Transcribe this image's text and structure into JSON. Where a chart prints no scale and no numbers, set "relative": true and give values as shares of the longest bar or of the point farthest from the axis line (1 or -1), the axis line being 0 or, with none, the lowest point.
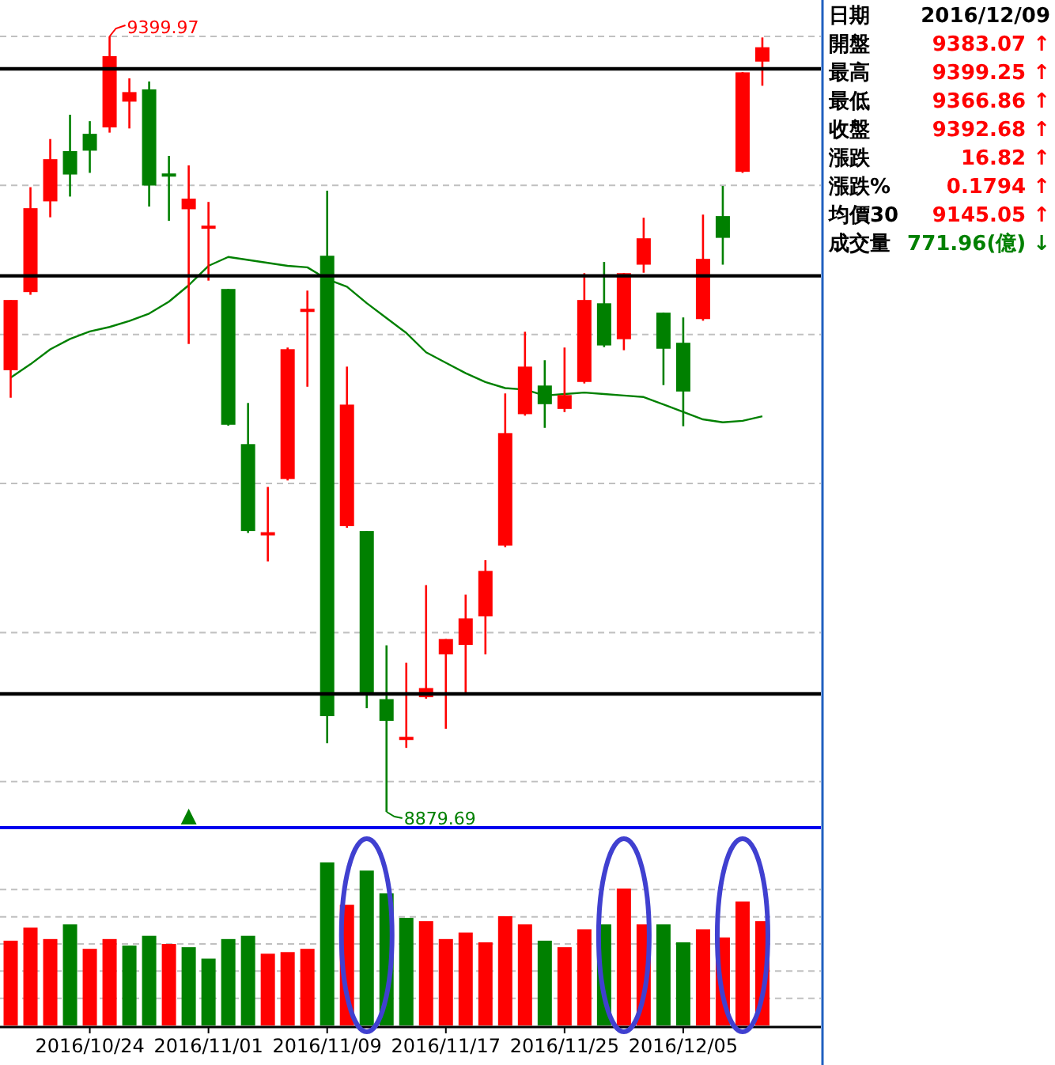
{
  "chart_data": [
    {
      "type": "candlestick",
      "categories": [
        null,
        null,
        null,
        null,
        null,
        null,
        null,
        null,
        null,
        null,
        null,
        null,
        null,
        null,
        null,
        null,
        null,
        null,
        null,
        null,
        null,
        null,
        null,
        null,
        null,
        null,
        null,
        null,
        null,
        null,
        null,
        null,
        null,
        null,
        null,
        null,
        null,
        null,
        null
      ],
      "ohlc": [
        [
          9176.0,
          9223.1,
          9157.5,
          9223.1
        ],
        [
          9228.4,
          9298.8,
          9226.6,
          9284.7
        ],
        [
          9289.3,
          9331.1,
          9278.6,
          9317.6
        ],
        [
          9323.0,
          9347.4,
          9292.5,
          9307.3
        ],
        [
          9334.6,
          9343.1,
          9308.4,
          9323.3
        ],
        [
          9338.9,
          9399.97,
          9335.4,
          9386.7
        ],
        [
          9356.2,
          9371.8,
          9338.2,
          9362.6
        ],
        [
          9364.4,
          9369.7,
          9285.8,
          9299.9
        ],
        [
          9308.0,
          9319.8,
          9276.2,
          9307.0
        ],
        [
          9284.0,
          9313.4,
          9193.6,
          9291.1
        ],
        [
          9272.3,
          9288.9,
          9236.1,
          9273.0
        ],
        [
          9230.5,
          9230.5,
          9138.8,
          9139.4
        ],
        [
          9126.4,
          9154.0,
          9066.8,
          9068.1
        ],
        [
          9066.3,
          9097.7,
          9047.7,
          9067.3
        ],
        [
          9103.0,
          9191.2,
          9102.0,
          9190.1
        ],
        [
          9216.2,
          9229.4,
          9164.9,
          9217.2
        ],
        [
          9252.8,
          9296.4,
          8925.8,
          8943.9
        ],
        [
          9071.4,
          9178.4,
          9070.3,
          9152.9
        ],
        [
          9068.1,
          9068.1,
          8949.2,
          8959.2
        ],
        [
          8955.3,
          8991.4,
          8879.69,
          8940.7
        ],
        [
          8929.0,
          8979.7,
          8922.6,
          8930.0
        ],
        [
          8956.6,
          9031.8,
          8955.6,
          8962.7
        ],
        [
          8985.3,
          8995.6,
          8935.4,
          8995.6
        ],
        [
          8991.7,
          9025.4,
          8959.2,
          9009.5
        ],
        [
          9010.8,
          9048.5,
          8985.3,
          9041.3
        ],
        [
          9058.3,
          9160.4,
          9057.3,
          9133.8
        ],
        [
          9146.5,
          9201.8,
          9145.5,
          9178.4
        ],
        [
          9165.7,
          9182.7,
          9137.3,
          9153.2
        ],
        [
          9150.0,
          9191.2,
          9147.9,
          9159.3
        ],
        [
          9168.1,
          9241.1,
          9167.1,
          9223.1
        ],
        [
          9220.9,
          9248.6,
          9191.5,
          9192.6
        ],
        [
          9196.8,
          9241.1,
          9189.4,
          9241.1
        ],
        [
          9246.8,
          9278.3,
          9241.4,
          9264.5
        ],
        [
          9214.6,
          9214.6,
          9166.0,
          9190.4
        ],
        [
          9194.4,
          9211.4,
          9138.4,
          9161.7
        ],
        [
          9210.3,
          9280.4,
          9209.2,
          9250.7
        ],
        [
          9279.4,
          9299.6,
          9246.8,
          9264.8
        ],
        [
          9309.1,
          9376.1,
          9308.4,
          9375.86
        ],
        [
          9383.07,
          9399.25,
          9366.86,
          9392.68
        ]
      ],
      "colors": [
        "#ff0000",
        "#ff0000",
        "#ff0000",
        "#008000",
        "#008000",
        "#ff0000",
        "#ff0000",
        "#008000",
        "#008000",
        "#ff0000",
        "#ff0000",
        "#008000",
        "#008000",
        "#ff0000",
        "#ff0000",
        "#ff0000",
        "#008000",
        "#ff0000",
        "#008000",
        "#008000",
        "#ff0000",
        "#ff0000",
        "#ff0000",
        "#ff0000",
        "#ff0000",
        "#ff0000",
        "#ff0000",
        "#008000",
        "#ff0000",
        "#ff0000",
        "#008000",
        "#ff0000",
        "#ff0000",
        "#008000",
        "#008000",
        "#ff0000",
        "#008000",
        "#ff0000",
        "#ff0000"
      ],
      "series": [
        {
          "type": "line",
          "color": "#008000",
          "values": [
            9171,
            9180,
            9190,
            9197,
            9202,
            9205,
            9209,
            9214,
            9222,
            9233,
            9246,
            9252,
            9250,
            9248,
            9246,
            9245,
            9237,
            9232,
            9221,
            9211,
            9201,
            9188,
            9181,
            9174,
            9168,
            9164,
            9163,
            9159,
            9160,
            9161,
            9160,
            9159,
            9158,
            9153,
            9148,
            9143,
            9141,
            9142,
            9145.05
          ]
        }
      ],
      "yticks": [
        {
          "value": 8900,
          "label": null
        },
        {
          "value": 9000,
          "label": null
        },
        {
          "value": 9100,
          "label": null
        },
        {
          "value": 9200,
          "label": null
        },
        {
          "value": 9300,
          "label": null
        },
        {
          "value": 9400,
          "label": null
        }
      ],
      "grid": true,
      "ref_lines": [
        {
          "axis": "y",
          "value": 9378.2,
          "color": "#000000"
        },
        {
          "axis": "y",
          "value": 9239.3,
          "color": "#000000"
        },
        {
          "axis": "y",
          "value": 8958.8,
          "color": "#000000"
        }
      ],
      "annotations": [
        "9399.97",
        "8879.69"
      ]
    },
    {
      "type": "bar",
      "relative": true,
      "grid": true,
      "categories": [
        null,
        null,
        null,
        null,
        "2016/10/24",
        null,
        null,
        null,
        null,
        null,
        "2016/11/01",
        null,
        null,
        null,
        null,
        null,
        "2016/11/09",
        null,
        null,
        null,
        null,
        null,
        "2016/11/17",
        null,
        null,
        null,
        null,
        null,
        "2016/11/25",
        null,
        null,
        null,
        null,
        null,
        "2016/12/05",
        null,
        null,
        null,
        null
      ],
      "values": [
        0.52,
        0.6,
        0.53,
        0.62,
        0.47,
        0.53,
        0.49,
        0.55,
        0.5,
        0.48,
        0.41,
        0.53,
        0.55,
        0.44,
        0.45,
        0.47,
        1,
        0.74,
        0.95,
        0.81,
        0.66,
        0.64,
        0.53,
        0.57,
        0.51,
        0.67,
        0.62,
        0.52,
        0.48,
        0.59,
        0.62,
        0.84,
        0.62,
        0.62,
        0.51,
        0.59,
        0.54,
        0.76,
        0.64
      ],
      "colors": [
        "#ff0000",
        "#ff0000",
        "#ff0000",
        "#008000",
        "#ff0000",
        "#ff0000",
        "#008000",
        "#008000",
        "#ff0000",
        "#008000",
        "#008000",
        "#008000",
        "#008000",
        "#ff0000",
        "#ff0000",
        "#ff0000",
        "#008000",
        "#ff0000",
        "#008000",
        "#008000",
        "#008000",
        "#ff0000",
        "#ff0000",
        "#ff0000",
        "#ff0000",
        "#ff0000",
        "#ff0000",
        "#008000",
        "#ff0000",
        "#ff0000",
        "#008000",
        "#ff0000",
        "#ff0000",
        "#008000",
        "#008000",
        "#ff0000",
        "#ff0000",
        "#ff0000",
        "#ff0000"
      ]
    },
    {
      "type": "other",
      "categories": [
        "日期",
        "開盤",
        "最高",
        "最低",
        "收盤",
        "漲跌",
        "漲跌%",
        "均價30",
        "成交量"
      ],
      "value_labels": [
        "2016/12/09",
        "9383.07 ↑",
        "9399.25 ↑",
        "9366.86 ↑",
        "9392.68 ↑",
        "16.82 ↑",
        "0.1794 ↑",
        "9145.05 ↑",
        "771.96(億) ↓"
      ],
      "colors": [
        "#000000",
        "#ff0000",
        "#ff0000",
        "#ff0000",
        "#ff0000",
        "#ff0000",
        "#ff0000",
        "#ff0000",
        "#008000"
      ]
    }
  ]
}
